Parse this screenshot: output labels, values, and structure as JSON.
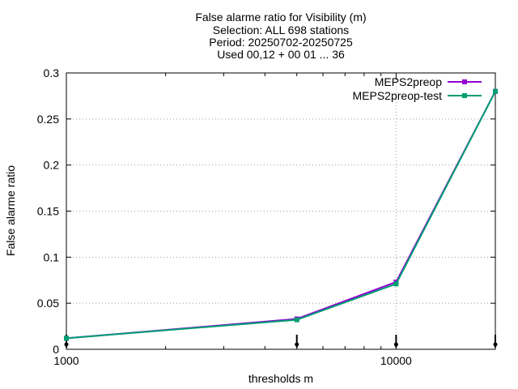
{
  "chart_data": {
    "type": "line",
    "title_lines": [
      "False alarme ratio  for Visibility (m)",
      "Selection: ALL    698 stations",
      "Period: 20250702-20250725",
      "Used 00,12 + 00 01 ... 36"
    ],
    "xlabel": "thresholds m",
    "ylabel": "False alarme ratio",
    "x_scale": "log",
    "xlim": [
      1000,
      20000
    ],
    "ylim": [
      0,
      0.3
    ],
    "x_tick_labels": [
      {
        "value": 1000,
        "label": "1000"
      },
      {
        "value": 10000,
        "label": "10000"
      }
    ],
    "y_ticks": [
      {
        "value": 0,
        "label": "0"
      },
      {
        "value": 0.05,
        "label": "0.05"
      },
      {
        "value": 0.1,
        "label": "0.1"
      },
      {
        "value": 0.15,
        "label": "0.15"
      },
      {
        "value": 0.2,
        "label": "0.2"
      },
      {
        "value": 0.25,
        "label": "0.25"
      },
      {
        "value": 0.3,
        "label": "0.3"
      }
    ],
    "grid": true,
    "legend_position": "top-right",
    "threshold_markers_x": [
      1000,
      5000,
      10000,
      20000
    ],
    "series": [
      {
        "name": "MEPS2preop",
        "color": "#9400d3",
        "x": [
          1000,
          5000,
          10000,
          20000
        ],
        "y": [
          0.012,
          0.033,
          0.073,
          0.28
        ]
      },
      {
        "name": "MEPS2preop-test",
        "color": "#009e73",
        "x": [
          1000,
          5000,
          10000,
          20000
        ],
        "y": [
          0.012,
          0.032,
          0.071,
          0.28
        ]
      }
    ]
  }
}
